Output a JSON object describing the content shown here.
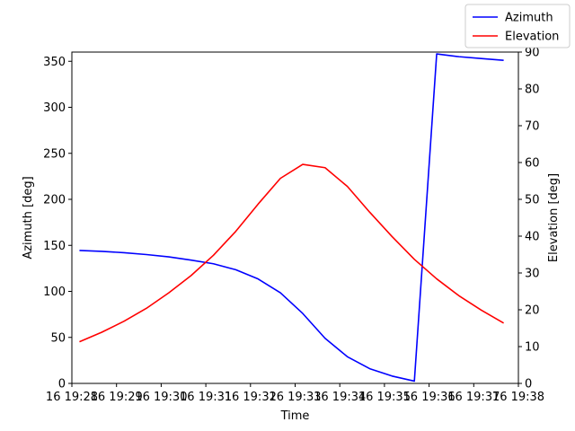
{
  "chart_data": {
    "type": "line",
    "xlabel": "Time",
    "ylabel_left": "Azimuth [deg]",
    "ylabel_right": "Elevation [deg]",
    "x_ticks": [
      "16 19:28",
      "16 19:29",
      "16 19:30",
      "16 19:31",
      "16 19:32",
      "16 19:33",
      "16 19:34",
      "16 19:35",
      "16 19:36",
      "16 19:37",
      "16 19:38"
    ],
    "x_tick_minutes": [
      28,
      29,
      30,
      31,
      32,
      33,
      34,
      35,
      36,
      37,
      38
    ],
    "xlim_minutes": [
      28,
      38
    ],
    "ylim_left": [
      0,
      360
    ],
    "yticks_left": [
      0,
      50,
      100,
      150,
      200,
      250,
      300,
      350
    ],
    "ylim_right": [
      0,
      90
    ],
    "yticks_right": [
      0,
      10,
      20,
      30,
      40,
      50,
      60,
      70,
      80,
      90
    ],
    "legend_position": "top-right",
    "x_minutes": [
      28.17,
      28.67,
      29.17,
      29.67,
      30.17,
      30.67,
      31.17,
      31.67,
      32.17,
      32.67,
      33.17,
      33.67,
      34.17,
      34.67,
      35.17,
      35.67,
      36.17,
      36.67,
      37.17,
      37.67
    ],
    "series": [
      {
        "name": "Azimuth",
        "axis": "left",
        "color": "#0000ff",
        "values": [
          144.5,
          143.5,
          142,
          140,
          137.5,
          134,
          130,
          123.5,
          113.5,
          98.5,
          76,
          49,
          29,
          16,
          8,
          2.5,
          358,
          355,
          353,
          351
        ]
      },
      {
        "name": "Elevation",
        "axis": "right",
        "color": "#ff0000",
        "values": [
          11.3,
          13.9,
          16.9,
          20.4,
          24.6,
          29.3,
          34.8,
          41.3,
          48.7,
          55.7,
          59.5,
          58.6,
          53.5,
          46.5,
          39.9,
          33.7,
          28.4,
          23.8,
          19.9,
          16.4
        ]
      }
    ]
  }
}
